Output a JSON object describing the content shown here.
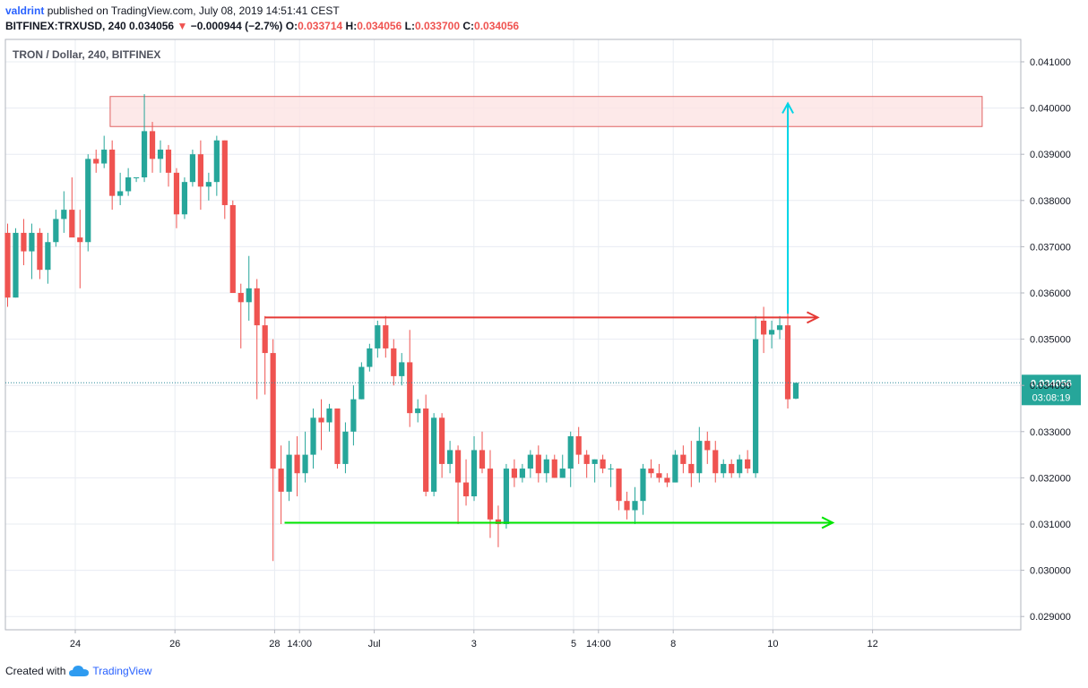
{
  "header": {
    "username": "valdrint",
    "published_text": "published on TradingView.com, July 08, 2019 14:51:41 CEST",
    "symbol_line": "BITFINEX:TRXUSD, 240",
    "price": "0.034056",
    "change": "−0.000944 (−2.7%)",
    "o_label": "O:",
    "o_value": "0.033714",
    "h_label": "H:",
    "h_value": "0.034056",
    "l_label": "L:",
    "l_value": "0.033700",
    "c_label": "C:",
    "c_value": "0.034056"
  },
  "footer": {
    "created_with": "Created with",
    "brand": "TradingView"
  },
  "colors": {
    "up": "#26a69a",
    "down": "#ef5350",
    "resistance": "#e53935",
    "support": "#00e600",
    "target_arrow": "#00d4e6",
    "zone_fill": "#fde3e3",
    "zone_stroke": "#e06060",
    "grid": "#e8ecf2",
    "price_line": "#2c8a9a"
  },
  "chart_data": {
    "type": "candlestick",
    "title": "TRON / Dollar, 240, BITFINEX",
    "ylim": [
      0.0288,
      0.0416
    ],
    "y_ticks": [
      "0.041000",
      "0.040000",
      "0.039000",
      "0.038000",
      "0.037000",
      "0.036000",
      "0.035000",
      "0.034000",
      "0.033000",
      "0.032000",
      "0.031000",
      "0.030000",
      "0.029000"
    ],
    "x_ticks": [
      "24",
      "26",
      "28",
      "14:00",
      "Jul",
      "3",
      "5",
      "14:00",
      "8",
      "10",
      "12"
    ],
    "x_tick_days": [
      24,
      26,
      28,
      28.5,
      30,
      32,
      34,
      34.5,
      36,
      38,
      40
    ],
    "xlim": [
      22.5,
      42.5
    ],
    "current_price": {
      "value": 0.034056,
      "label": "0.034056",
      "countdown": "03:08:19"
    },
    "candles": [
      {
        "o": 0.0373,
        "h": 0.0375,
        "l": 0.0357,
        "c": 0.0359
      },
      {
        "o": 0.0359,
        "h": 0.0374,
        "l": 0.0359,
        "c": 0.0373
      },
      {
        "o": 0.0373,
        "h": 0.0376,
        "l": 0.0366,
        "c": 0.0369
      },
      {
        "o": 0.0369,
        "h": 0.0375,
        "l": 0.0363,
        "c": 0.0373
      },
      {
        "o": 0.0373,
        "h": 0.0374,
        "l": 0.0363,
        "c": 0.0365
      },
      {
        "o": 0.0365,
        "h": 0.0373,
        "l": 0.0362,
        "c": 0.0371
      },
      {
        "o": 0.0371,
        "h": 0.0378,
        "l": 0.037,
        "c": 0.0376
      },
      {
        "o": 0.0376,
        "h": 0.0382,
        "l": 0.0373,
        "c": 0.0378
      },
      {
        "o": 0.0378,
        "h": 0.0385,
        "l": 0.0373,
        "c": 0.0372
      },
      {
        "o": 0.0372,
        "h": 0.0378,
        "l": 0.0361,
        "c": 0.0371
      },
      {
        "o": 0.0371,
        "h": 0.039,
        "l": 0.0369,
        "c": 0.0389
      },
      {
        "o": 0.0389,
        "h": 0.0391,
        "l": 0.0386,
        "c": 0.0388
      },
      {
        "o": 0.0388,
        "h": 0.0394,
        "l": 0.0387,
        "c": 0.0391
      },
      {
        "o": 0.0391,
        "h": 0.0393,
        "l": 0.0378,
        "c": 0.0381
      },
      {
        "o": 0.0381,
        "h": 0.0386,
        "l": 0.0379,
        "c": 0.0382
      },
      {
        "o": 0.0382,
        "h": 0.0387,
        "l": 0.0381,
        "c": 0.0385
      },
      {
        "o": 0.0385,
        "h": 0.0385,
        "l": 0.0384,
        "c": 0.0385
      },
      {
        "o": 0.0385,
        "h": 0.0403,
        "l": 0.0384,
        "c": 0.0395
      },
      {
        "o": 0.0395,
        "h": 0.0397,
        "l": 0.0386,
        "c": 0.0389
      },
      {
        "o": 0.0389,
        "h": 0.0393,
        "l": 0.0386,
        "c": 0.0391
      },
      {
        "o": 0.0391,
        "h": 0.0392,
        "l": 0.0383,
        "c": 0.0386
      },
      {
        "o": 0.0386,
        "h": 0.0387,
        "l": 0.0374,
        "c": 0.0377
      },
      {
        "o": 0.0377,
        "h": 0.0385,
        "l": 0.0376,
        "c": 0.0384
      },
      {
        "o": 0.0384,
        "h": 0.0391,
        "l": 0.0383,
        "c": 0.039
      },
      {
        "o": 0.039,
        "h": 0.0393,
        "l": 0.0378,
        "c": 0.0383
      },
      {
        "o": 0.0383,
        "h": 0.0386,
        "l": 0.038,
        "c": 0.0384
      },
      {
        "o": 0.0384,
        "h": 0.0394,
        "l": 0.0381,
        "c": 0.0393
      },
      {
        "o": 0.0393,
        "h": 0.0393,
        "l": 0.0376,
        "c": 0.0379
      },
      {
        "o": 0.0379,
        "h": 0.038,
        "l": 0.0361,
        "c": 0.036
      },
      {
        "o": 0.036,
        "h": 0.0362,
        "l": 0.0348,
        "c": 0.0358
      },
      {
        "o": 0.0358,
        "h": 0.0368,
        "l": 0.0354,
        "c": 0.0361
      },
      {
        "o": 0.0361,
        "h": 0.0363,
        "l": 0.0337,
        "c": 0.0353
      },
      {
        "o": 0.0353,
        "h": 0.0355,
        "l": 0.0338,
        "c": 0.0347
      },
      {
        "o": 0.0347,
        "h": 0.035,
        "l": 0.0302,
        "c": 0.0322
      },
      {
        "o": 0.0322,
        "h": 0.0327,
        "l": 0.031,
        "c": 0.0317
      },
      {
        "o": 0.0317,
        "h": 0.0328,
        "l": 0.0315,
        "c": 0.0325
      },
      {
        "o": 0.0325,
        "h": 0.0329,
        "l": 0.0316,
        "c": 0.0321
      },
      {
        "o": 0.0321,
        "h": 0.033,
        "l": 0.0319,
        "c": 0.0325
      },
      {
        "o": 0.0325,
        "h": 0.0335,
        "l": 0.0322,
        "c": 0.0333
      },
      {
        "o": 0.0333,
        "h": 0.0337,
        "l": 0.0326,
        "c": 0.0332
      },
      {
        "o": 0.0332,
        "h": 0.0336,
        "l": 0.033,
        "c": 0.0335
      },
      {
        "o": 0.0335,
        "h": 0.0335,
        "l": 0.0322,
        "c": 0.0323
      },
      {
        "o": 0.0323,
        "h": 0.0332,
        "l": 0.0321,
        "c": 0.033
      },
      {
        "o": 0.033,
        "h": 0.034,
        "l": 0.0327,
        "c": 0.0337
      },
      {
        "o": 0.0337,
        "h": 0.0345,
        "l": 0.0337,
        "c": 0.0344
      },
      {
        "o": 0.0344,
        "h": 0.0349,
        "l": 0.0343,
        "c": 0.0348
      },
      {
        "o": 0.0348,
        "h": 0.0354,
        "l": 0.0346,
        "c": 0.0353
      },
      {
        "o": 0.0353,
        "h": 0.0355,
        "l": 0.0346,
        "c": 0.0348
      },
      {
        "o": 0.0348,
        "h": 0.035,
        "l": 0.034,
        "c": 0.0342
      },
      {
        "o": 0.0342,
        "h": 0.0347,
        "l": 0.034,
        "c": 0.0345
      },
      {
        "o": 0.0345,
        "h": 0.0352,
        "l": 0.0331,
        "c": 0.0334
      },
      {
        "o": 0.0334,
        "h": 0.0337,
        "l": 0.0332,
        "c": 0.0335
      },
      {
        "o": 0.0335,
        "h": 0.0338,
        "l": 0.0316,
        "c": 0.0317
      },
      {
        "o": 0.0317,
        "h": 0.0334,
        "l": 0.0316,
        "c": 0.0333
      },
      {
        "o": 0.0333,
        "h": 0.0334,
        "l": 0.032,
        "c": 0.0323
      },
      {
        "o": 0.0323,
        "h": 0.0328,
        "l": 0.0321,
        "c": 0.0326
      },
      {
        "o": 0.0326,
        "h": 0.0327,
        "l": 0.031,
        "c": 0.0319
      },
      {
        "o": 0.0319,
        "h": 0.0324,
        "l": 0.0314,
        "c": 0.0316
      },
      {
        "o": 0.0316,
        "h": 0.0329,
        "l": 0.0315,
        "c": 0.0326
      },
      {
        "o": 0.0326,
        "h": 0.033,
        "l": 0.0321,
        "c": 0.0322
      },
      {
        "o": 0.0322,
        "h": 0.0326,
        "l": 0.0307,
        "c": 0.0311
      },
      {
        "o": 0.0311,
        "h": 0.0314,
        "l": 0.0305,
        "c": 0.031
      },
      {
        "o": 0.031,
        "h": 0.0323,
        "l": 0.0309,
        "c": 0.0322
      },
      {
        "o": 0.0322,
        "h": 0.0324,
        "l": 0.0318,
        "c": 0.032
      },
      {
        "o": 0.032,
        "h": 0.0323,
        "l": 0.0319,
        "c": 0.0322
      },
      {
        "o": 0.0322,
        "h": 0.0326,
        "l": 0.032,
        "c": 0.0325
      },
      {
        "o": 0.0325,
        "h": 0.0327,
        "l": 0.0319,
        "c": 0.0321
      },
      {
        "o": 0.0321,
        "h": 0.0325,
        "l": 0.0319,
        "c": 0.0324
      },
      {
        "o": 0.0324,
        "h": 0.0325,
        "l": 0.032,
        "c": 0.032
      },
      {
        "o": 0.032,
        "h": 0.0325,
        "l": 0.032,
        "c": 0.0322
      },
      {
        "o": 0.0322,
        "h": 0.033,
        "l": 0.0318,
        "c": 0.0329
      },
      {
        "o": 0.0329,
        "h": 0.0331,
        "l": 0.0323,
        "c": 0.0325
      },
      {
        "o": 0.0325,
        "h": 0.0326,
        "l": 0.032,
        "c": 0.0323
      },
      {
        "o": 0.0323,
        "h": 0.0324,
        "l": 0.0319,
        "c": 0.0324
      },
      {
        "o": 0.0324,
        "h": 0.0325,
        "l": 0.0321,
        "c": 0.0322
      },
      {
        "o": 0.0322,
        "h": 0.0323,
        "l": 0.0318,
        "c": 0.0322
      },
      {
        "o": 0.0322,
        "h": 0.0322,
        "l": 0.0313,
        "c": 0.0315
      },
      {
        "o": 0.0315,
        "h": 0.0317,
        "l": 0.0311,
        "c": 0.0313
      },
      {
        "o": 0.0313,
        "h": 0.0318,
        "l": 0.031,
        "c": 0.0315
      },
      {
        "o": 0.0315,
        "h": 0.0323,
        "l": 0.0312,
        "c": 0.0322
      },
      {
        "o": 0.0322,
        "h": 0.0324,
        "l": 0.032,
        "c": 0.0321
      },
      {
        "o": 0.0321,
        "h": 0.0323,
        "l": 0.0319,
        "c": 0.032
      },
      {
        "o": 0.032,
        "h": 0.0321,
        "l": 0.0318,
        "c": 0.0319
      },
      {
        "o": 0.0319,
        "h": 0.0326,
        "l": 0.0319,
        "c": 0.0325
      },
      {
        "o": 0.0325,
        "h": 0.0327,
        "l": 0.0321,
        "c": 0.0323
      },
      {
        "o": 0.0323,
        "h": 0.0328,
        "l": 0.0318,
        "c": 0.0321
      },
      {
        "o": 0.0321,
        "h": 0.0331,
        "l": 0.0319,
        "c": 0.0328
      },
      {
        "o": 0.0328,
        "h": 0.033,
        "l": 0.0323,
        "c": 0.0326
      },
      {
        "o": 0.0326,
        "h": 0.0328,
        "l": 0.0319,
        "c": 0.0321
      },
      {
        "o": 0.0321,
        "h": 0.0324,
        "l": 0.032,
        "c": 0.0323
      },
      {
        "o": 0.0323,
        "h": 0.0324,
        "l": 0.032,
        "c": 0.0321
      },
      {
        "o": 0.0321,
        "h": 0.0325,
        "l": 0.032,
        "c": 0.0324
      },
      {
        "o": 0.0324,
        "h": 0.0326,
        "l": 0.0321,
        "c": 0.0322
      },
      {
        "o": 0.0321,
        "h": 0.0355,
        "l": 0.032,
        "c": 0.035
      },
      {
        "o": 0.0354,
        "h": 0.0357,
        "l": 0.0347,
        "c": 0.0351
      },
      {
        "o": 0.0351,
        "h": 0.0354,
        "l": 0.0348,
        "c": 0.0352
      },
      {
        "o": 0.0352,
        "h": 0.0355,
        "l": 0.035,
        "c": 0.0353
      },
      {
        "o": 0.0353,
        "h": 0.0358,
        "l": 0.0335,
        "c": 0.0337
      },
      {
        "o": 0.033714,
        "h": 0.034056,
        "l": 0.0337,
        "c": 0.034056
      }
    ],
    "annotations": [
      {
        "type": "zone",
        "name": "resistance-zone",
        "from_day": 24.7,
        "to_day": 42.2,
        "y_low": 0.0396,
        "y_high": 0.04025
      },
      {
        "type": "ray",
        "name": "resistance-line",
        "from_day": 27.8,
        "to_day": 38.9,
        "y": 0.03547
      },
      {
        "type": "ray",
        "name": "support-line",
        "from_day": 28.2,
        "to_day": 39.2,
        "y": 0.03103
      },
      {
        "type": "arrow",
        "name": "target-arrow",
        "day": 38.3,
        "y_from": 0.03555,
        "y_to": 0.0401
      }
    ]
  }
}
